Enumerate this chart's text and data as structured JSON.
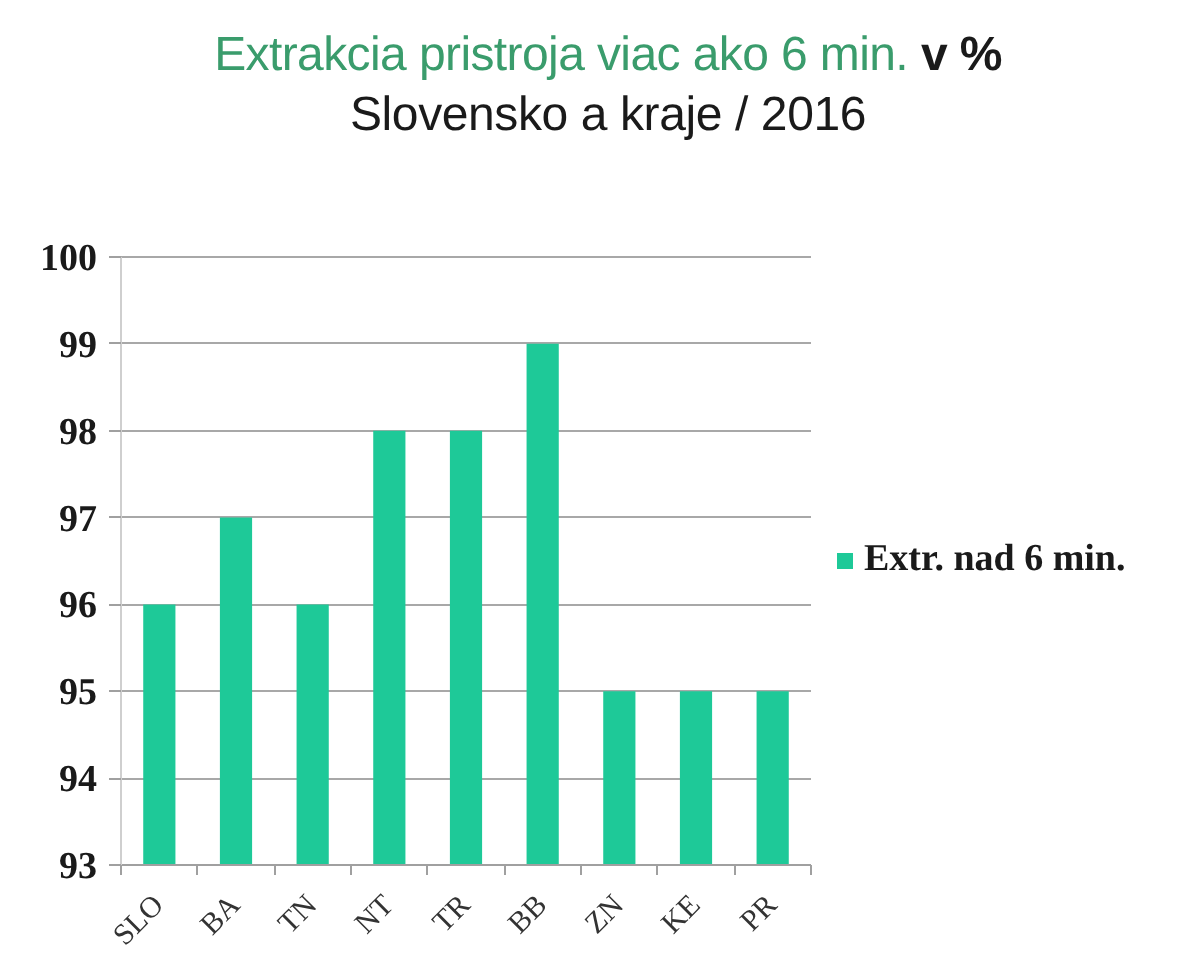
{
  "chart_data": {
    "type": "bar",
    "title": "Extrakcia pristroja viac ako 6 min. v %",
    "subtitle": "Slovensko a kraje / 2016",
    "categories": [
      "SLO",
      "BA",
      "TN",
      "NT",
      "TR",
      "BB",
      "ZN",
      "KE",
      "PR"
    ],
    "series": [
      {
        "name": "Extr. nad 6 min.",
        "color": "#1ec998",
        "values": [
          96,
          97,
          96,
          98,
          98,
          99,
          95,
          95,
          95
        ]
      }
    ],
    "ylim": [
      93,
      100
    ],
    "yticks": [
      93,
      94,
      95,
      96,
      97,
      98,
      99,
      100
    ],
    "grid": "y",
    "legend": "right"
  }
}
